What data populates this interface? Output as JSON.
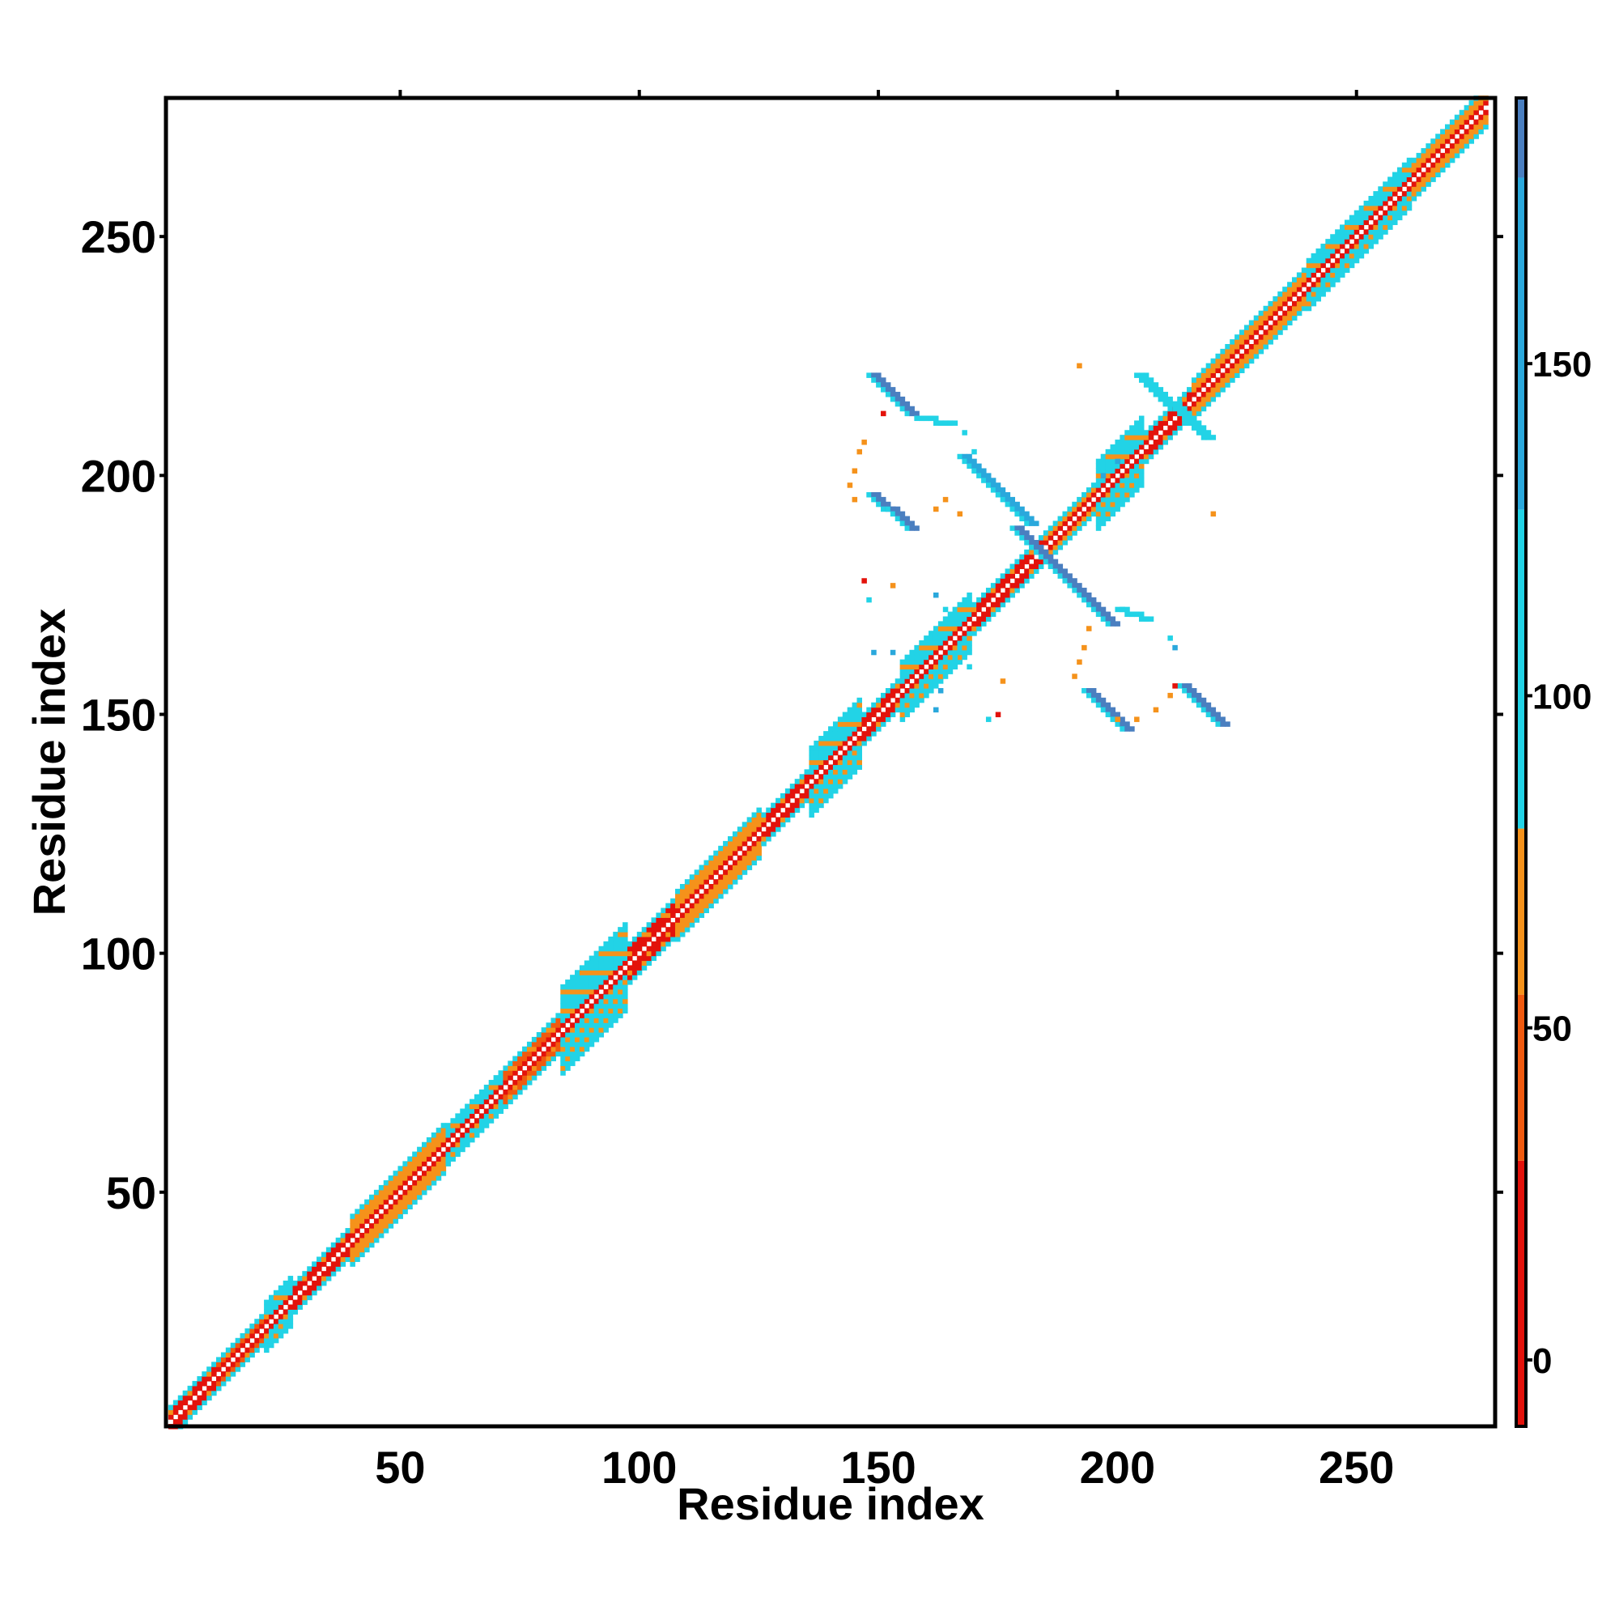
{
  "chart_data": {
    "type": "heatmap",
    "title": "",
    "xlabel": "Residue index",
    "ylabel": "Residue index",
    "xlim": [
      1,
      279
    ],
    "ylim": [
      1,
      279
    ],
    "xticks": [
      50,
      100,
      150,
      200,
      250
    ],
    "yticks": [
      50,
      100,
      150,
      200,
      250
    ],
    "xtick_labels": [
      "50",
      "100",
      "150",
      "200",
      "250"
    ],
    "ytick_labels": [
      "50",
      "100",
      "150",
      "200",
      "250"
    ],
    "grid": false,
    "colorbar": {
      "range": [
        -10,
        190
      ],
      "ticks": [
        0,
        50,
        100,
        150
      ],
      "tick_labels": [
        "0",
        "50",
        "100",
        "150"
      ],
      "bands": [
        {
          "from": -10,
          "to": 30,
          "color": "#e3120b"
        },
        {
          "from": 30,
          "to": 55,
          "color": "#f05a0f"
        },
        {
          "from": 55,
          "to": 80,
          "color": "#f5921b"
        },
        {
          "from": 80,
          "to": 128,
          "color": "#22d3e6"
        },
        {
          "from": 128,
          "to": 178,
          "color": "#2aa8dc"
        },
        {
          "from": 178,
          "to": 190,
          "color": "#4a7fc0"
        }
      ]
    },
    "colors": {
      "red": "#e3120b",
      "red_orange": "#f05a0f",
      "orange": "#f5921b",
      "cyan": "#22d3e6",
      "sky": "#2aa8dc",
      "steel": "#4a7fc0"
    },
    "diagonal_band": {
      "range": [
        2,
        278
      ],
      "segments": [
        {
          "from": 2,
          "to": 12,
          "color": "red",
          "width": 3
        },
        {
          "from": 12,
          "to": 22,
          "color": "red_orange",
          "width": 3
        },
        {
          "from": 22,
          "to": 28,
          "color": "cyan",
          "width": 5
        },
        {
          "from": 28,
          "to": 40,
          "color": "red",
          "width": 3
        },
        {
          "from": 40,
          "to": 60,
          "color": "orange",
          "width": 5
        },
        {
          "from": 60,
          "to": 72,
          "color": "cyan",
          "width": 4
        },
        {
          "from": 72,
          "to": 84,
          "color": "red_orange",
          "width": 4
        },
        {
          "from": 84,
          "to": 98,
          "color": "cyan",
          "width": 9
        },
        {
          "from": 98,
          "to": 108,
          "color": "red",
          "width": 4
        },
        {
          "from": 108,
          "to": 126,
          "color": "orange",
          "width": 5
        },
        {
          "from": 126,
          "to": 136,
          "color": "red",
          "width": 3
        },
        {
          "from": 136,
          "to": 147,
          "color": "cyan",
          "width": 7
        },
        {
          "from": 147,
          "to": 155,
          "color": "red",
          "width": 3
        },
        {
          "from": 155,
          "to": 170,
          "color": "cyan",
          "width": 6
        },
        {
          "from": 170,
          "to": 185,
          "color": "red",
          "width": 3
        },
        {
          "from": 185,
          "to": 196,
          "color": "orange",
          "width": 3
        },
        {
          "from": 196,
          "to": 206,
          "color": "cyan",
          "width": 7
        },
        {
          "from": 206,
          "to": 216,
          "color": "red",
          "width": 3
        },
        {
          "from": 216,
          "to": 240,
          "color": "orange",
          "width": 4
        },
        {
          "from": 240,
          "to": 262,
          "color": "cyan",
          "width": 5
        },
        {
          "from": 262,
          "to": 278,
          "color": "orange",
          "width": 4
        }
      ]
    },
    "off_diagonal_strands": [
      {
        "from": [
          148,
          221
        ],
        "to": [
          156,
          213
        ],
        "color": "steel",
        "width": 3
      },
      {
        "from": [
          148,
          196
        ],
        "to": [
          156,
          189
        ],
        "color": "steel",
        "width": 3
      },
      {
        "from": [
          167,
          204
        ],
        "to": [
          181,
          190
        ],
        "color": "sky",
        "width": 3
      },
      {
        "from": [
          178,
          189
        ],
        "to": [
          198,
          169
        ],
        "color": "steel",
        "width": 3
      },
      {
        "from": [
          204,
          221
        ],
        "to": [
          218,
          208
        ],
        "color": "cyan",
        "width": 3
      },
      {
        "from": [
          193,
          155
        ],
        "to": [
          201,
          147
        ],
        "color": "steel",
        "width": 3
      },
      {
        "from": [
          213,
          156
        ],
        "to": [
          221,
          148
        ],
        "color": "steel",
        "width": 3
      },
      {
        "from": [
          200,
          172
        ],
        "to": [
          206,
          170
        ],
        "color": "cyan",
        "width": 2
      },
      {
        "from": [
          158,
          212
        ],
        "to": [
          165,
          211
        ],
        "color": "cyan",
        "width": 2
      }
    ],
    "scatter_points": [
      {
        "x": 147,
        "y": 207,
        "color": "orange"
      },
      {
        "x": 146,
        "y": 205,
        "color": "orange"
      },
      {
        "x": 145,
        "y": 201,
        "color": "orange"
      },
      {
        "x": 144,
        "y": 198,
        "color": "orange"
      },
      {
        "x": 145,
        "y": 195,
        "color": "orange"
      },
      {
        "x": 162,
        "y": 193,
        "color": "orange"
      },
      {
        "x": 164,
        "y": 195,
        "color": "orange"
      },
      {
        "x": 167,
        "y": 192,
        "color": "orange"
      },
      {
        "x": 151,
        "y": 213,
        "color": "red"
      },
      {
        "x": 168,
        "y": 209,
        "color": "cyan"
      },
      {
        "x": 170,
        "y": 205,
        "color": "cyan"
      },
      {
        "x": 192,
        "y": 223,
        "color": "orange"
      },
      {
        "x": 220,
        "y": 192,
        "color": "orange"
      },
      {
        "x": 147,
        "y": 178,
        "color": "red"
      },
      {
        "x": 148,
        "y": 174,
        "color": "cyan"
      },
      {
        "x": 153,
        "y": 177,
        "color": "orange"
      },
      {
        "x": 162,
        "y": 175,
        "color": "sky"
      },
      {
        "x": 164,
        "y": 172,
        "color": "cyan"
      },
      {
        "x": 149,
        "y": 163,
        "color": "sky"
      },
      {
        "x": 153,
        "y": 163,
        "color": "sky"
      },
      {
        "x": 166,
        "y": 162,
        "color": "cyan"
      },
      {
        "x": 169,
        "y": 160,
        "color": "cyan"
      },
      {
        "x": 163,
        "y": 155,
        "color": "sky"
      },
      {
        "x": 162,
        "y": 151,
        "color": "sky"
      },
      {
        "x": 176,
        "y": 157,
        "color": "orange"
      },
      {
        "x": 175,
        "y": 150,
        "color": "red"
      },
      {
        "x": 173,
        "y": 149,
        "color": "cyan"
      },
      {
        "x": 194,
        "y": 168,
        "color": "orange"
      },
      {
        "x": 193,
        "y": 164,
        "color": "orange"
      },
      {
        "x": 192,
        "y": 161,
        "color": "orange"
      },
      {
        "x": 191,
        "y": 158,
        "color": "orange"
      },
      {
        "x": 200,
        "y": 149,
        "color": "orange"
      },
      {
        "x": 204,
        "y": 149,
        "color": "orange"
      },
      {
        "x": 208,
        "y": 151,
        "color": "orange"
      },
      {
        "x": 211,
        "y": 154,
        "color": "orange"
      },
      {
        "x": 212,
        "y": 156,
        "color": "red"
      },
      {
        "x": 211,
        "y": 166,
        "color": "cyan"
      },
      {
        "x": 212,
        "y": 164,
        "color": "sky"
      },
      {
        "x": 197,
        "y": 200,
        "color": "sky"
      },
      {
        "x": 200,
        "y": 203,
        "color": "sky"
      },
      {
        "x": 202,
        "y": 199,
        "color": "cyan"
      }
    ]
  }
}
